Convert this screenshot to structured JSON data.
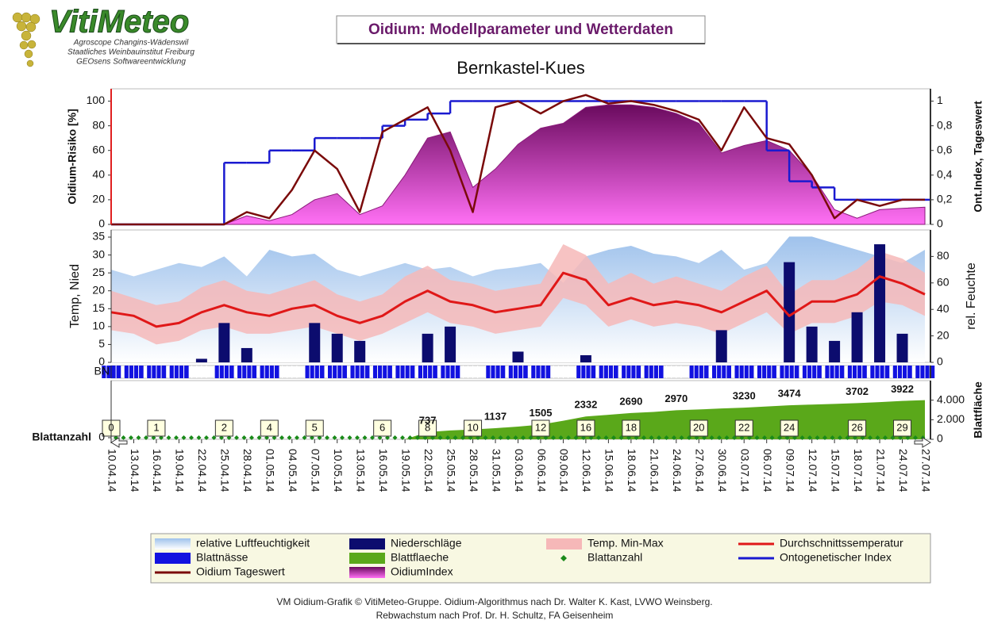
{
  "header": {
    "logo": "VitiMeteo",
    "logo_lines": [
      "Agroscope Changins-Wädenswil",
      "Staatliches Weinbauinstitut Freiburg",
      "GEOsens Softwareentwicklung"
    ],
    "title": "Oidium: Modellparameter und Wetterdaten",
    "location": "Bernkastel-Kues"
  },
  "footer": [
    "VM Oidium-Grafik © VitiMeteo-Gruppe. Oidium-Algorithmus nach Dr. Walter K. Kast, LVWO Weinsberg.",
    "Rebwachstum nach Prof. Dr. H. Schultz, FA Geisenheim"
  ],
  "chart_data": [
    {
      "type": "combo",
      "ylabel": "Oidium-Risiko [%]",
      "y2label": "Ont.Index, Tageswert",
      "ylim": [
        0,
        110
      ],
      "yticks": [
        0,
        20,
        40,
        60,
        80,
        100
      ],
      "y2lim": [
        0,
        1.1
      ],
      "y2ticks": [
        0,
        {
          "value": 0.2,
          "label": "0,2"
        },
        {
          "value": 0.4,
          "label": "0,4"
        },
        {
          "value": 0.6,
          "label": "0,6"
        },
        {
          "value": 0.8,
          "label": "0,8"
        },
        1
      ],
      "series": [
        {
          "name": "OidiumIndex",
          "kind": "area",
          "axis": "y",
          "color": "#d21cc4",
          "values": [
            0,
            0,
            0,
            0,
            0,
            0,
            7,
            3,
            8,
            20,
            25,
            8,
            15,
            40,
            70,
            75,
            30,
            45,
            65,
            78,
            82,
            95,
            97,
            97,
            95,
            90,
            82,
            58,
            64,
            68,
            60,
            40,
            12,
            5,
            12,
            13,
            14
          ]
        },
        {
          "name": "Ontogenetischer Index",
          "kind": "step",
          "axis": "y2",
          "color": "#1a1ad0",
          "values": [
            0,
            0,
            0,
            0,
            0,
            0.5,
            0.5,
            0.6,
            0.6,
            0.7,
            0.7,
            0.7,
            0.8,
            0.85,
            0.9,
            1,
            1,
            1,
            1,
            1,
            1,
            1,
            1,
            1,
            1,
            1,
            1,
            1,
            1,
            0.6,
            0.35,
            0.3,
            0.2,
            0.2,
            0.2,
            0.2,
            0.2
          ]
        },
        {
          "name": "Oidium Tageswert",
          "kind": "line",
          "axis": "y2",
          "color": "#7a0a0a",
          "values": [
            0,
            0,
            0,
            0,
            0,
            0,
            0.1,
            0.05,
            0.28,
            0.6,
            0.45,
            0.1,
            0.75,
            0.85,
            0.95,
            0.6,
            0.1,
            0.95,
            1,
            0.9,
            1,
            1.05,
            0.98,
            1,
            0.97,
            0.92,
            0.85,
            0.6,
            0.95,
            0.7,
            0.65,
            0.4,
            0.05,
            0.2,
            0.15,
            0.2,
            0.2
          ]
        }
      ]
    },
    {
      "type": "combo",
      "ylabel": "Temp, Nied",
      "y2label": "rel. Feuchte",
      "ylim": [
        0,
        37
      ],
      "yticks": [
        0,
        5,
        10,
        15,
        20,
        25,
        30,
        35
      ],
      "y2lim": [
        0,
        100
      ],
      "y2ticks": [
        0,
        20,
        40,
        60,
        80
      ],
      "series": [
        {
          "name": "relative Luftfeuchtigkeit",
          "kind": "area",
          "axis": "y2",
          "color": "#a9c9ee",
          "values": [
            70,
            65,
            70,
            75,
            72,
            80,
            65,
            85,
            80,
            82,
            70,
            65,
            70,
            75,
            70,
            72,
            65,
            70,
            72,
            75,
            60,
            80,
            85,
            88,
            82,
            80,
            75,
            85,
            70,
            75,
            95,
            95,
            90,
            85,
            80,
            75,
            85
          ]
        },
        {
          "name": "Temp. Min-Max",
          "kind": "band",
          "axis": "y",
          "color": "#f6b8b8",
          "low": [
            9,
            8,
            5,
            6,
            9,
            10,
            8,
            8,
            9,
            10,
            8,
            6,
            8,
            11,
            14,
            11,
            10,
            8,
            9,
            10,
            18,
            16,
            10,
            12,
            10,
            11,
            10,
            8,
            11,
            14,
            8,
            11,
            11,
            13,
            17,
            16,
            13
          ],
          "high": [
            20,
            18,
            16,
            17,
            21,
            23,
            20,
            19,
            21,
            23,
            19,
            17,
            19,
            24,
            27,
            23,
            22,
            20,
            21,
            22,
            33,
            30,
            22,
            25,
            22,
            24,
            22,
            20,
            24,
            27,
            19,
            23,
            23,
            26,
            31,
            29,
            25
          ]
        },
        {
          "name": "Niederschläge",
          "kind": "bars",
          "axis": "y",
          "color": "#0c0c6e",
          "values": [
            0,
            0,
            0,
            0,
            1,
            11,
            4,
            0,
            0,
            11,
            8,
            6,
            0,
            0,
            8,
            10,
            0,
            0,
            3,
            0,
            0,
            2,
            0,
            0,
            0,
            0,
            0,
            9,
            0,
            0,
            28,
            10,
            6,
            14,
            33,
            8,
            0
          ]
        },
        {
          "name": "Durchschnittssemperatur",
          "kind": "line",
          "axis": "y",
          "color": "#e01818",
          "values": [
            14,
            13,
            10,
            11,
            14,
            16,
            14,
            13,
            15,
            16,
            13,
            11,
            13,
            17,
            20,
            17,
            16,
            14,
            15,
            16,
            25,
            23,
            16,
            18,
            16,
            17,
            16,
            14,
            17,
            20,
            13,
            17,
            17,
            19,
            24,
            22,
            19
          ]
        }
      ]
    },
    {
      "type": "strip",
      "ylabel": "BN",
      "series": [
        {
          "name": "Blattnässe",
          "kind": "strip",
          "color": "#1212e0",
          "values": [
            1,
            1,
            1,
            1,
            0,
            1,
            1,
            1,
            0,
            1,
            1,
            1,
            1,
            1,
            1,
            1,
            0,
            1,
            1,
            1,
            0,
            1,
            1,
            1,
            1,
            0,
            1,
            1,
            1,
            1,
            1,
            1,
            1,
            1,
            1,
            1,
            1
          ]
        }
      ]
    },
    {
      "type": "combo",
      "ylabel": "Blattanzahl",
      "yticks": [
        0
      ],
      "y2label": "Blattfläche",
      "y2lim": [
        0,
        6000
      ],
      "y2ticks": [
        0,
        {
          "value": 2000,
          "label": "2.000"
        },
        {
          "value": 4000,
          "label": "4.000"
        }
      ],
      "categories": [
        "10.04.14",
        "13.04.14",
        "16.04.14",
        "19.04.14",
        "22.04.14",
        "25.04.14",
        "28.04.14",
        "01.05.14",
        "04.05.14",
        "07.05.14",
        "10.05.14",
        "13.05.14",
        "16.05.14",
        "19.05.14",
        "22.05.14",
        "25.05.14",
        "28.05.14",
        "31.05.14",
        "03.06.14",
        "06.06.14",
        "09.06.14",
        "12.06.14",
        "15.06.14",
        "18.06.14",
        "21.06.14",
        "24.06.14",
        "27.06.14",
        "30.06.14",
        "03.07.14",
        "06.07.14",
        "09.07.14",
        "12.07.14",
        "15.07.14",
        "18.07.14",
        "21.07.14",
        "24.07.14",
        "27.07.14"
      ],
      "series": [
        {
          "name": "Blattflaeche",
          "kind": "area",
          "axis": "y2",
          "color": "#5aa81a",
          "values": [
            0,
            0,
            0,
            0,
            0,
            0,
            0,
            0,
            0,
            0,
            0,
            0,
            0,
            0,
            737,
            900,
            1000,
            1137,
            1300,
            1505,
            1900,
            2332,
            2500,
            2690,
            2800,
            2970,
            3050,
            3150,
            3230,
            3350,
            3474,
            3550,
            3620,
            3702,
            3800,
            3922,
            4000
          ],
          "value_labels": [
            null,
            null,
            null,
            null,
            null,
            null,
            null,
            null,
            null,
            null,
            null,
            null,
            null,
            null,
            "737",
            null,
            null,
            "1137",
            null,
            "1505",
            null,
            "2332",
            null,
            "2690",
            null,
            "2970",
            null,
            null,
            "3230",
            null,
            "3474",
            null,
            null,
            "3702",
            null,
            "3922",
            null
          ]
        },
        {
          "name": "Blattanzahl",
          "kind": "boxes",
          "color": "#1a8a1a",
          "values": [
            0,
            null,
            1,
            null,
            null,
            2,
            null,
            4,
            null,
            5,
            null,
            null,
            6,
            null,
            8,
            null,
            10,
            null,
            null,
            12,
            null,
            16,
            null,
            18,
            null,
            null,
            20,
            null,
            22,
            null,
            24,
            null,
            null,
            26,
            null,
            29,
            null
          ]
        }
      ]
    }
  ]
}
